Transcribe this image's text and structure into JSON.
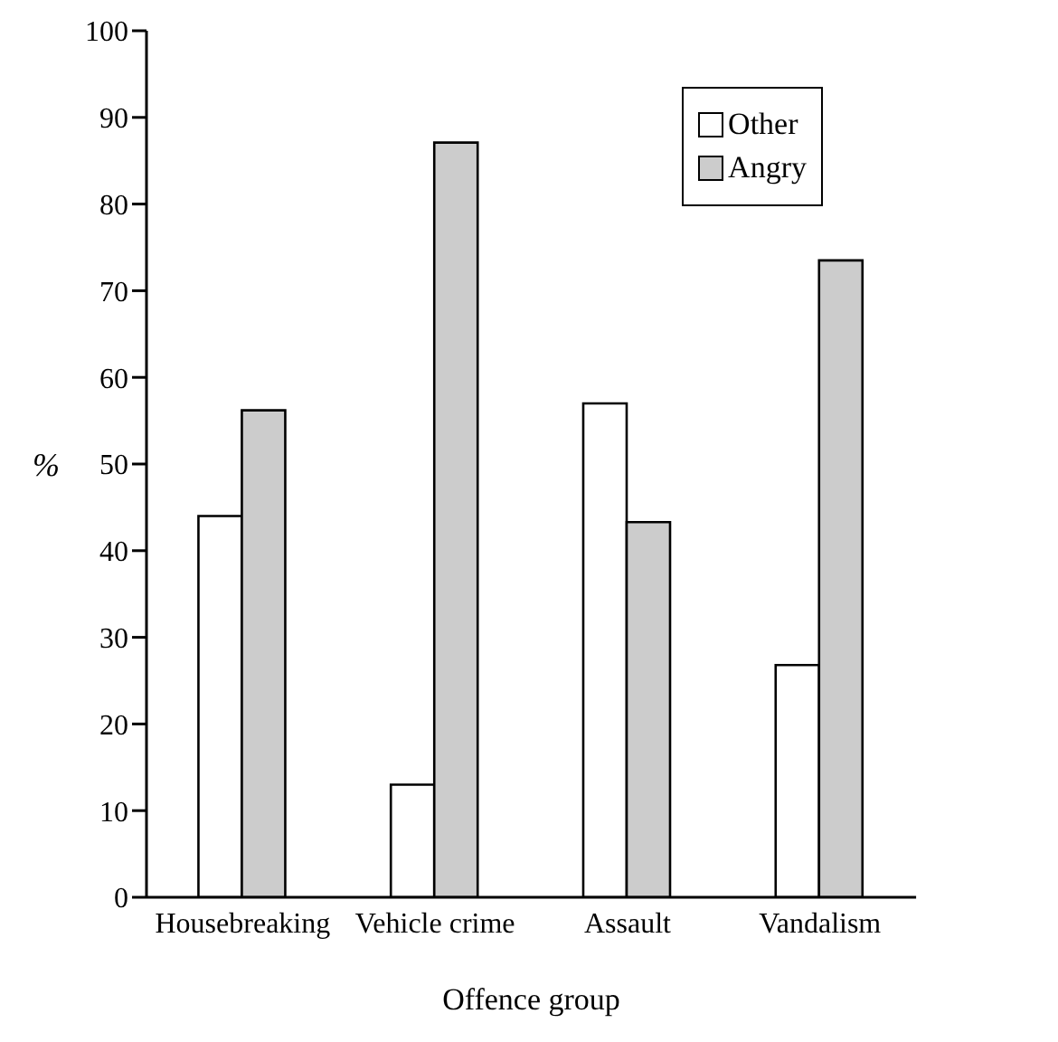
{
  "chart_data": {
    "type": "bar",
    "xlabel": "Offence group",
    "ylabel": "%",
    "categories": [
      "Housebreaking",
      "Vehicle crime",
      "Assault",
      "Vandalism"
    ],
    "series": [
      {
        "name": "Other",
        "color": "#ffffff",
        "values": [
          44,
          13,
          57,
          26.8
        ]
      },
      {
        "name": "Angry",
        "color": "#cccccc",
        "values": [
          56.2,
          87.1,
          43.3,
          73.5
        ]
      }
    ],
    "ylim": [
      0,
      100
    ],
    "yticks": [
      0,
      10,
      20,
      30,
      40,
      50,
      60,
      70,
      80,
      90,
      100
    ],
    "grid": false,
    "legend": "top right"
  }
}
